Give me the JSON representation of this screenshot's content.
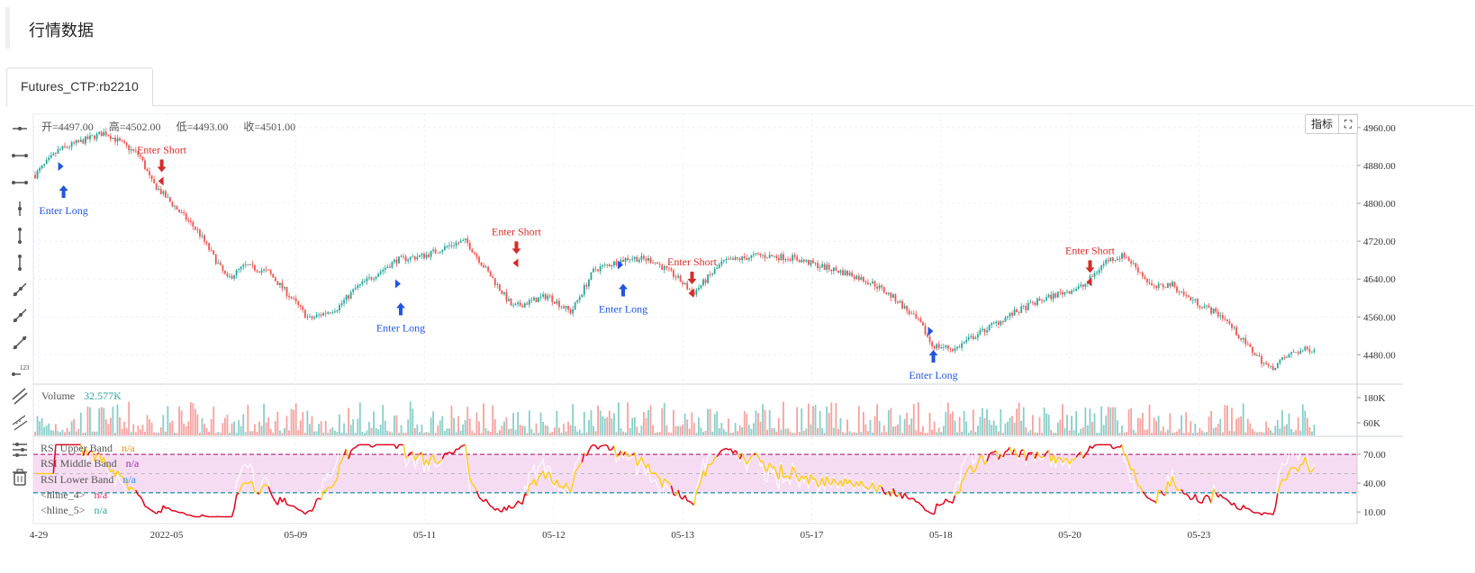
{
  "page": {
    "title": "行情数据"
  },
  "tabs": [
    {
      "label": "Futures_CTP:rb2210"
    }
  ],
  "toolbar": {
    "icons": [
      "horizontal-ray-icon",
      "horizontal-segment-icon",
      "horizontal-line-icon",
      "vertical-segment-icon",
      "vertical-dots-icon",
      "vertical-line-icon",
      "trend-ray-icon",
      "trend-segment-icon",
      "trend-line-icon",
      "price-label-icon",
      "parallel-channel-icon",
      "hatch-channel-icon",
      "indicator-settings-icon",
      "trash-icon"
    ]
  },
  "legend": {
    "open": "开=4497.00",
    "high": "高=4502.00",
    "low": "低=4493.00",
    "close": "收=4501.00"
  },
  "buttons": {
    "indicators": "指标",
    "fullscreen_glyph": "⛶"
  },
  "volume_legend": {
    "label": "Volume",
    "value": "32.577K"
  },
  "rsi_legend": [
    {
      "label": "RSI Upper Band",
      "value": "n/a",
      "color": "#f0900c"
    },
    {
      "label": "RSI Middle Band",
      "value": "n/a",
      "color": "#9c27b0"
    },
    {
      "label": "RSI Lower Band",
      "value": "n/a",
      "color": "#2196f3"
    },
    {
      "label": "<hline_4>",
      "value": "n/a",
      "color": "#e91e63"
    },
    {
      "label": "<hline_5>",
      "value": "n/a",
      "color": "#26a69a"
    }
  ],
  "colors": {
    "up": "#26a69a",
    "down": "#ef5350",
    "long": "#2155e0",
    "short": "#d62b2b",
    "rsi_fast": "#ffcf1b",
    "rsi_slow": "#ffffff",
    "rsi_hot": "#e0001a",
    "band_fill": "#f6dcf3",
    "upper_line": "#b5357f",
    "lower_line": "#2a9aa8"
  },
  "chart_data": {
    "type": "candlestick",
    "symbol": "Futures_CTP:rb2210",
    "x_ticks": [
      "4-29",
      "2022-05",
      "05-09",
      "05-11",
      "05-12",
      "05-13",
      "05-17",
      "05-18",
      "05-20",
      "05-23"
    ],
    "price_axis": {
      "ticks": [
        "4960.00",
        "4880.00",
        "4800.00",
        "4720.00",
        "4640.00",
        "4560.00",
        "4480.00"
      ],
      "range": [
        4420,
        4990
      ]
    },
    "volume_axis": {
      "ticks": [
        "180K",
        "60K"
      ],
      "range": [
        0,
        240000
      ]
    },
    "rsi_axis": {
      "ticks": [
        "70.00",
        "40.00",
        "10.00"
      ],
      "range": [
        -2,
        86
      ],
      "upper": 70,
      "middle": 50,
      "lower": 30
    },
    "price_path": [
      [
        0,
        4860
      ],
      [
        0.02,
        4912
      ],
      [
        0.06,
        4950
      ],
      [
        0.09,
        4900
      ],
      [
        0.1,
        4845
      ],
      [
        0.14,
        4740
      ],
      [
        0.165,
        4640
      ],
      [
        0.18,
        4668
      ],
      [
        0.2,
        4655
      ],
      [
        0.22,
        4600
      ],
      [
        0.235,
        4555
      ],
      [
        0.26,
        4580
      ],
      [
        0.275,
        4620
      ],
      [
        0.31,
        4680
      ],
      [
        0.335,
        4690
      ],
      [
        0.36,
        4715
      ],
      [
        0.37,
        4720
      ],
      [
        0.39,
        4650
      ],
      [
        0.41,
        4580
      ],
      [
        0.44,
        4605
      ],
      [
        0.46,
        4570
      ],
      [
        0.48,
        4660
      ],
      [
        0.51,
        4685
      ],
      [
        0.53,
        4680
      ],
      [
        0.55,
        4645
      ],
      [
        0.565,
        4610
      ],
      [
        0.59,
        4675
      ],
      [
        0.62,
        4690
      ],
      [
        0.65,
        4685
      ],
      [
        0.67,
        4670
      ],
      [
        0.7,
        4650
      ],
      [
        0.72,
        4630
      ],
      [
        0.74,
        4595
      ],
      [
        0.76,
        4545
      ],
      [
        0.77,
        4500
      ],
      [
        0.79,
        4492
      ],
      [
        0.8,
        4510
      ],
      [
        0.82,
        4540
      ],
      [
        0.84,
        4568
      ],
      [
        0.86,
        4592
      ],
      [
        0.88,
        4610
      ],
      [
        0.9,
        4625
      ],
      [
        0.92,
        4680
      ],
      [
        0.935,
        4690
      ],
      [
        0.945,
        4665
      ],
      [
        0.96,
        4620
      ],
      [
        0.975,
        4630
      ],
      [
        0.99,
        4600
      ],
      [
        1.02,
        4560
      ],
      [
        1.04,
        4500
      ],
      [
        1.06,
        4450
      ],
      [
        1.08,
        4485
      ],
      [
        1.1,
        4495
      ]
    ],
    "signals": [
      {
        "label": "Enter Long",
        "dir": "long",
        "pos": 0.012,
        "price": 4876
      },
      {
        "label": "Enter Short",
        "dir": "short",
        "pos": 0.102,
        "price": 4845
      },
      {
        "label": "Enter Long",
        "dir": "long",
        "pos": 0.3,
        "price": 4628
      },
      {
        "label": "Enter Short",
        "dir": "short",
        "pos": 0.405,
        "price": 4672
      },
      {
        "label": "Enter Long",
        "dir": "long",
        "pos": 0.49,
        "price": 4668
      },
      {
        "label": "Enter Short",
        "dir": "short",
        "pos": 0.555,
        "price": 4608
      },
      {
        "label": "Enter Long",
        "dir": "long",
        "pos": 0.755,
        "price": 4528
      },
      {
        "label": "Enter Short",
        "dir": "short",
        "pos": 0.895,
        "price": 4632
      }
    ]
  }
}
